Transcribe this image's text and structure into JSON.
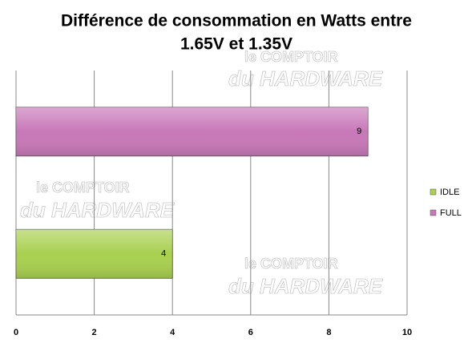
{
  "chart_data": {
    "type": "hbar",
    "title": [
      "Différence de consommation en Watts entre",
      "1.65V et 1.35V"
    ],
    "watermark": [
      "le COMPTOIR",
      "du HARDWARE"
    ],
    "series": [
      {
        "name": "IDLE",
        "color": "#a9d04f",
        "values": [
          4
        ]
      },
      {
        "name": "FULL",
        "color": "#c878b8",
        "values": [
          9
        ]
      }
    ],
    "xlim": [
      0,
      10
    ],
    "xticks": [
      0,
      2,
      4,
      6,
      8,
      10
    ],
    "grid": true,
    "legend": "right"
  }
}
